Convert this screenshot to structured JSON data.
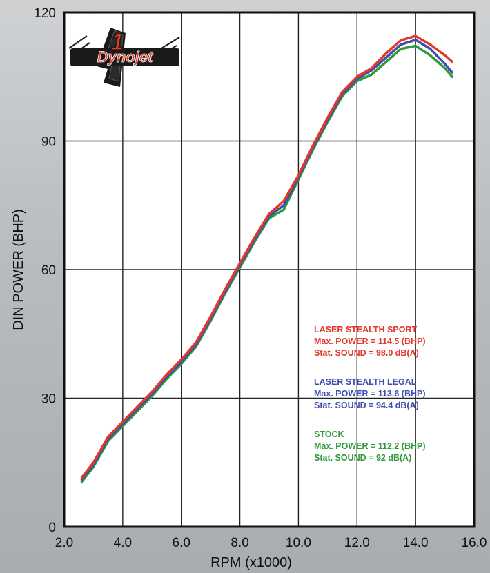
{
  "chart_data": {
    "type": "line",
    "xlabel": "RPM (x1000)",
    "ylabel": "DIN POWER (BHP)",
    "xlim": [
      2.0,
      16.0
    ],
    "ylim": [
      0,
      120
    ],
    "x_ticks": [
      "2.0",
      "4.0",
      "6.0",
      "8.0",
      "10.0",
      "12.0",
      "14.0",
      "16.0"
    ],
    "y_ticks": [
      "0",
      "30",
      "60",
      "90",
      "120"
    ],
    "grid": true,
    "logo": {
      "text": "Dynojet",
      "numeral": "1"
    },
    "series": [
      {
        "name": "STOCK",
        "color": "#2e9a3a",
        "x": [
          2.6,
          3.0,
          3.5,
          4.0,
          4.5,
          5.0,
          5.5,
          6.0,
          6.5,
          7.0,
          7.5,
          8.0,
          8.5,
          9.0,
          9.5,
          10.0,
          10.5,
          11.0,
          11.5,
          12.0,
          12.5,
          13.0,
          13.5,
          14.0,
          14.5,
          15.0,
          15.25
        ],
        "y": [
          10.5,
          14.0,
          20.0,
          23.5,
          27.0,
          30.5,
          34.5,
          38.0,
          42.0,
          48.0,
          54.5,
          60.5,
          66.5,
          72.0,
          74.0,
          81.0,
          88.0,
          94.5,
          100.5,
          104.0,
          105.5,
          108.5,
          111.5,
          112.2,
          110.0,
          107.0,
          105.0
        ]
      },
      {
        "name": "LASER STEALTH LEGAL",
        "color": "#3d4fae",
        "x": [
          2.6,
          3.0,
          3.5,
          4.0,
          4.5,
          5.0,
          5.5,
          6.0,
          6.5,
          7.0,
          7.5,
          8.0,
          8.5,
          9.0,
          9.5,
          10.0,
          10.5,
          11.0,
          11.5,
          12.0,
          12.5,
          13.0,
          13.5,
          14.0,
          14.5,
          15.0,
          15.25
        ],
        "y": [
          11.0,
          14.5,
          20.5,
          24.0,
          27.5,
          31.0,
          35.0,
          38.5,
          42.5,
          48.5,
          55.0,
          61.0,
          67.0,
          72.5,
          75.0,
          81.5,
          88.5,
          95.0,
          101.0,
          104.5,
          106.5,
          109.5,
          112.5,
          113.6,
          111.5,
          108.0,
          106.0
        ]
      },
      {
        "name": "LASER STEALTH SPORT",
        "color": "#e2382a",
        "x": [
          2.6,
          3.0,
          3.5,
          4.0,
          4.5,
          5.0,
          5.5,
          6.0,
          6.5,
          7.0,
          7.5,
          8.0,
          8.5,
          9.0,
          9.5,
          10.0,
          10.5,
          11.0,
          11.5,
          12.0,
          12.5,
          13.0,
          13.5,
          14.0,
          14.5,
          15.0,
          15.25
        ],
        "y": [
          11.5,
          15.0,
          21.0,
          24.5,
          28.0,
          31.5,
          35.5,
          39.0,
          43.0,
          49.0,
          55.5,
          61.5,
          67.5,
          73.0,
          76.0,
          82.0,
          89.0,
          95.5,
          101.5,
          105.0,
          107.0,
          110.5,
          113.5,
          114.5,
          112.5,
          110.0,
          108.5
        ]
      }
    ],
    "annotations": [
      {
        "color": "#e2382a",
        "lines": [
          "LASER STEALTH SPORT",
          "Max. POWER = 114.5 (BHP)",
          "Stat. SOUND = 98.0 dB(A)"
        ]
      },
      {
        "color": "#3d4fae",
        "lines": [
          "LASER STEALTH LEGAL",
          "Max. POWER = 113.6 (BHP)",
          "Stat. SOUND = 94.4 dB(A)"
        ]
      },
      {
        "color": "#2e9a3a",
        "lines": [
          "STOCK",
          "Max. POWER = 112.2 (BHP)",
          "Stat. SOUND = 92 dB(A)"
        ]
      }
    ]
  }
}
